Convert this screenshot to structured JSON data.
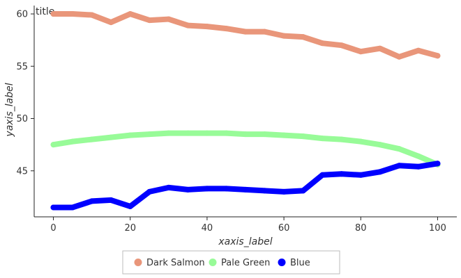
{
  "chart_data": {
    "type": "line",
    "title": "title",
    "xlabel": "xaxis_label",
    "ylabel": "yaxis_label",
    "xlim": [
      -5,
      105
    ],
    "ylim": [
      40.6,
      60.8
    ],
    "x_ticks": [
      0,
      20,
      40,
      60,
      80,
      100
    ],
    "y_ticks": [
      45,
      50,
      55,
      60
    ],
    "x_tick_labels": [
      "0",
      "20",
      "40",
      "60",
      "80",
      "100"
    ],
    "y_tick_labels": [
      "45",
      "50",
      "55",
      "60"
    ],
    "grid": false,
    "legend_position": "bottom",
    "series": [
      {
        "name": "Dark Salmon",
        "color": "#E9967A",
        "x": [
          0,
          5,
          10,
          15,
          20,
          25,
          30,
          35,
          40,
          45,
          50,
          55,
          60,
          65,
          70,
          75,
          80,
          85,
          90,
          95,
          100
        ],
        "y": [
          60.0,
          60.0,
          59.9,
          59.2,
          60.0,
          59.4,
          59.5,
          58.9,
          58.8,
          58.6,
          58.3,
          58.3,
          57.9,
          57.8,
          57.2,
          57.0,
          56.4,
          56.7,
          55.9,
          56.5,
          56.0
        ]
      },
      {
        "name": "Pale Green",
        "color": "#98FB98",
        "x": [
          0,
          5,
          10,
          15,
          20,
          25,
          30,
          35,
          40,
          45,
          50,
          55,
          60,
          65,
          70,
          75,
          80,
          85,
          90,
          95,
          100
        ],
        "y": [
          47.5,
          47.8,
          48.0,
          48.2,
          48.4,
          48.5,
          48.6,
          48.6,
          48.6,
          48.6,
          48.5,
          48.5,
          48.4,
          48.3,
          48.1,
          48.0,
          47.8,
          47.5,
          47.1,
          46.4,
          45.6
        ]
      },
      {
        "name": "Blue",
        "color": "#0000FF",
        "x": [
          0,
          5,
          10,
          15,
          20,
          25,
          30,
          35,
          40,
          45,
          50,
          55,
          60,
          65,
          70,
          75,
          80,
          85,
          90,
          95,
          100
        ],
        "y": [
          41.5,
          41.5,
          42.1,
          42.2,
          41.6,
          43.0,
          43.4,
          43.2,
          43.3,
          43.3,
          43.2,
          43.1,
          43.0,
          43.1,
          44.6,
          44.7,
          44.6,
          44.9,
          45.5,
          45.4,
          45.7
        ]
      }
    ]
  }
}
